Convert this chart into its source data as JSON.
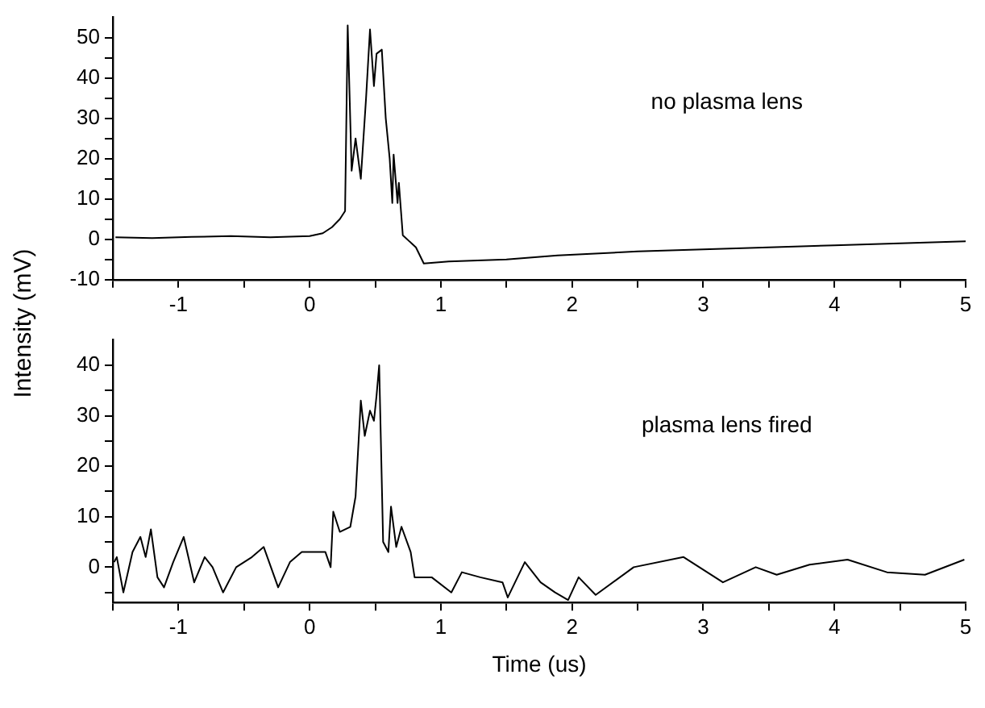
{
  "chart_data": [
    {
      "type": "line",
      "ylabel": "Intensity (mV)",
      "annotations": [
        "no plasma lens"
      ],
      "xlim": [
        -1.5,
        5
      ],
      "xticks": [
        {
          "value": -1.5,
          "label": null
        },
        -1,
        {
          "value": -0.5,
          "label": null
        },
        0,
        {
          "value": 0.5,
          "label": null
        },
        1,
        {
          "value": 1.5,
          "label": null
        },
        2,
        {
          "value": 2.5,
          "label": null
        },
        3,
        {
          "value": 3.5,
          "label": null
        },
        4,
        {
          "value": 4.5,
          "label": null
        },
        5
      ],
      "ylim": [
        -10,
        55
      ],
      "yticks": [
        -10,
        {
          "value": -5,
          "label": null
        },
        0,
        {
          "value": 5,
          "label": null
        },
        10,
        {
          "value": 15,
          "label": null
        },
        20,
        {
          "value": 25,
          "label": null
        },
        30,
        {
          "value": 35,
          "label": null
        },
        40,
        {
          "value": 45,
          "label": null
        },
        50
      ],
      "series": [
        {
          "color": "#000000",
          "x": [
            -1.48,
            -1.2,
            -0.9,
            -0.6,
            -0.3,
            0.0,
            0.1,
            0.17,
            0.23,
            0.27,
            0.29,
            0.32,
            0.35,
            0.39,
            0.43,
            0.46,
            0.49,
            0.51,
            0.55,
            0.58,
            0.61,
            0.63,
            0.64,
            0.67,
            0.68,
            0.71,
            0.81,
            0.87,
            1.06,
            1.5,
            1.89,
            2.5,
            3.0,
            3.5,
            4.0,
            4.5,
            5.0
          ],
          "values": [
            0.5,
            0.3,
            0.6,
            0.8,
            0.5,
            0.8,
            1.5,
            3,
            5,
            7,
            53,
            17,
            25,
            15,
            35,
            52,
            38,
            46,
            47,
            30,
            20,
            9,
            21,
            9,
            14,
            1,
            -2,
            -6,
            -5.5,
            -5,
            -4,
            -3,
            -2.5,
            -2,
            -1.5,
            -1,
            -0.5
          ]
        }
      ]
    },
    {
      "type": "line",
      "xlabel": "Time (us)",
      "annotations": [
        "plasma lens fired"
      ],
      "xlim": [
        -1.5,
        5
      ],
      "xticks": [
        {
          "value": -1.5,
          "label": null
        },
        -1,
        {
          "value": -0.5,
          "label": null
        },
        0,
        {
          "value": 0.5,
          "label": null
        },
        1,
        {
          "value": 1.5,
          "label": null
        },
        2,
        {
          "value": 2.5,
          "label": null
        },
        3,
        {
          "value": 3.5,
          "label": null
        },
        4,
        {
          "value": 4.5,
          "label": null
        },
        5
      ],
      "ylim": [
        -7,
        45
      ],
      "yticks": [
        {
          "value": -5,
          "label": null
        },
        0,
        {
          "value": 5,
          "label": null
        },
        10,
        {
          "value": 15,
          "label": null
        },
        20,
        {
          "value": 25,
          "label": null
        },
        30,
        {
          "value": 35,
          "label": null
        },
        40
      ],
      "series": [
        {
          "color": "#000000",
          "x": [
            -1.49,
            -1.47,
            -1.42,
            -1.35,
            -1.29,
            -1.25,
            -1.21,
            -1.16,
            -1.11,
            -1.04,
            -0.96,
            -0.88,
            -0.8,
            -0.74,
            -0.66,
            -0.56,
            -0.44,
            -0.35,
            -0.24,
            -0.15,
            -0.06,
            0.12,
            0.16,
            0.18,
            0.23,
            0.31,
            0.35,
            0.39,
            0.42,
            0.46,
            0.49,
            0.51,
            0.53,
            0.56,
            0.6,
            0.62,
            0.66,
            0.7,
            0.77,
            0.8,
            0.93,
            1.08,
            1.16,
            1.3,
            1.47,
            1.51,
            1.64,
            1.76,
            1.87,
            1.97,
            2.05,
            2.18,
            2.47,
            2.85,
            3.15,
            3.4,
            3.56,
            3.81,
            4.1,
            4.4,
            4.69,
            4.99
          ],
          "values": [
            1,
            2,
            -5,
            3,
            6,
            2,
            7.5,
            -2,
            -4,
            1,
            6,
            -3,
            2,
            0,
            -5,
            0,
            2,
            4,
            -4,
            1,
            3,
            3,
            0,
            11,
            7,
            8,
            14,
            33,
            26,
            31,
            29,
            34,
            40,
            5,
            3,
            12,
            4,
            8,
            3,
            -2,
            -2,
            -5,
            -1,
            -2,
            -3,
            -6,
            1,
            -3,
            -5,
            -6.5,
            -2,
            -5.5,
            0,
            2,
            -3,
            0,
            -1.5,
            0.5,
            1.5,
            -1,
            -1.5,
            1.5
          ]
        }
      ]
    }
  ]
}
